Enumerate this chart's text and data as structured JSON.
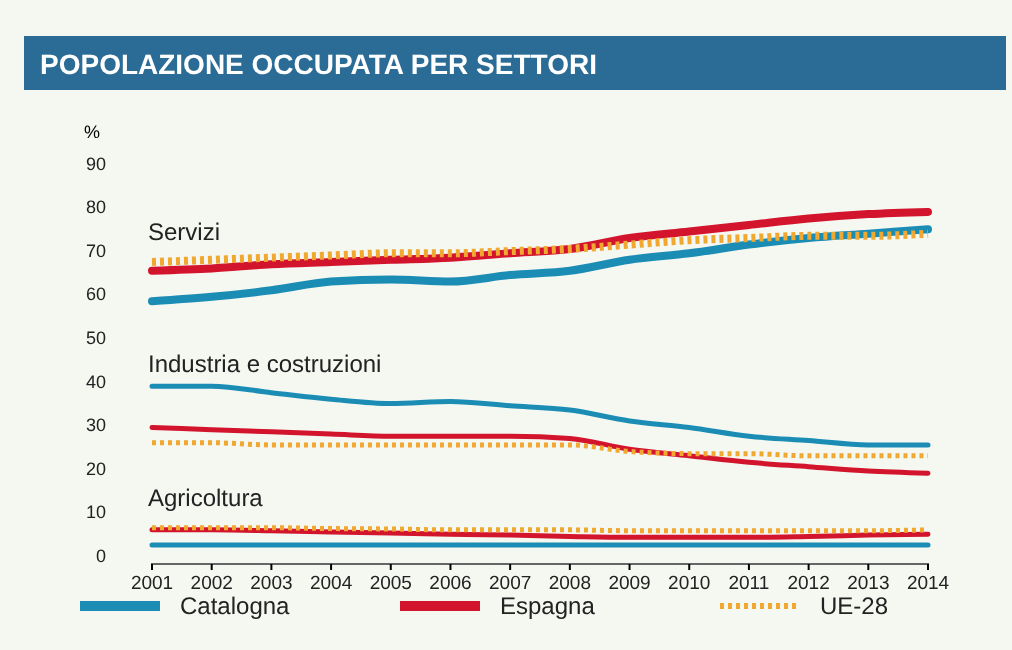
{
  "chart_data": {
    "type": "line",
    "title": "POPOLAZIONE OCCUPATA PER SETTORI",
    "ylabel": "%",
    "x": [
      2001,
      2002,
      2003,
      2004,
      2005,
      2006,
      2007,
      2008,
      2009,
      2010,
      2011,
      2012,
      2013,
      2014
    ],
    "xlim": [
      2001,
      2014
    ],
    "xticks": [
      2001,
      2002,
      2003,
      2004,
      2005,
      2006,
      2007,
      2008,
      2009,
      2010,
      2011,
      2012,
      2013,
      2014
    ],
    "ylim": [
      0,
      90
    ],
    "yticks": [
      0,
      10,
      20,
      30,
      40,
      50,
      60,
      70,
      80,
      90
    ],
    "grid": false,
    "legend": "bottom",
    "marker": "none",
    "line_style": "solid",
    "annotations": [
      "Servizi",
      "Industria e costruzioni",
      "Agricoltura"
    ],
    "series": [
      {
        "name": "Catalogna",
        "color": "#1b8db5",
        "values": [
          58.5,
          59.5,
          61,
          63,
          63.5,
          63,
          64.5,
          65.5,
          68,
          69.5,
          71.5,
          73,
          74,
          75
        ]
      },
      {
        "name": "Espagna",
        "color": "#d3142d",
        "values": [
          65.5,
          66,
          67,
          67.5,
          68,
          68.5,
          69.5,
          70.5,
          73,
          74.5,
          76,
          77.5,
          78.5,
          79
        ]
      },
      {
        "name": "UE-28",
        "color": "#f0a830",
        "line_style": "dotted",
        "values": [
          67.5,
          68,
          68.5,
          69,
          69.5,
          69.5,
          70,
          70.5,
          71.5,
          72.5,
          73,
          73.5,
          73.5,
          74
        ]
      },
      {
        "color": "#1b8db5",
        "values": [
          39,
          39,
          37.5,
          36,
          35,
          35.5,
          34.5,
          33.5,
          31,
          29.5,
          27.5,
          26.5,
          25.5,
          25.5
        ]
      },
      {
        "color": "#d3142d",
        "values": [
          29.5,
          29,
          28.5,
          28,
          27.5,
          27.5,
          27.5,
          27,
          24.5,
          23,
          21.5,
          20.5,
          19.5,
          19
        ]
      },
      {
        "color": "#f0a830",
        "line_style": "dotted",
        "values": [
          26,
          26,
          25.5,
          25.5,
          25.5,
          25.5,
          25.5,
          25.5,
          24,
          23.5,
          23.5,
          23,
          23,
          23
        ]
      },
      {
        "color": "#1b8db5",
        "values": [
          2.5,
          2.5,
          2.5,
          2.5,
          2.5,
          2.5,
          2.5,
          2.5,
          2.5,
          2.5,
          2.5,
          2.5,
          2.5,
          2.5
        ]
      },
      {
        "color": "#d3142d",
        "values": [
          6,
          6,
          5.8,
          5.5,
          5.3,
          5,
          4.8,
          4.5,
          4.3,
          4.3,
          4.3,
          4.5,
          4.8,
          5
        ]
      },
      {
        "color": "#f0a830",
        "line_style": "dotted",
        "values": [
          6.5,
          6.5,
          6.5,
          6.3,
          6.2,
          6,
          6,
          6,
          5.8,
          5.8,
          5.8,
          5.8,
          5.8,
          6
        ]
      }
    ]
  }
}
